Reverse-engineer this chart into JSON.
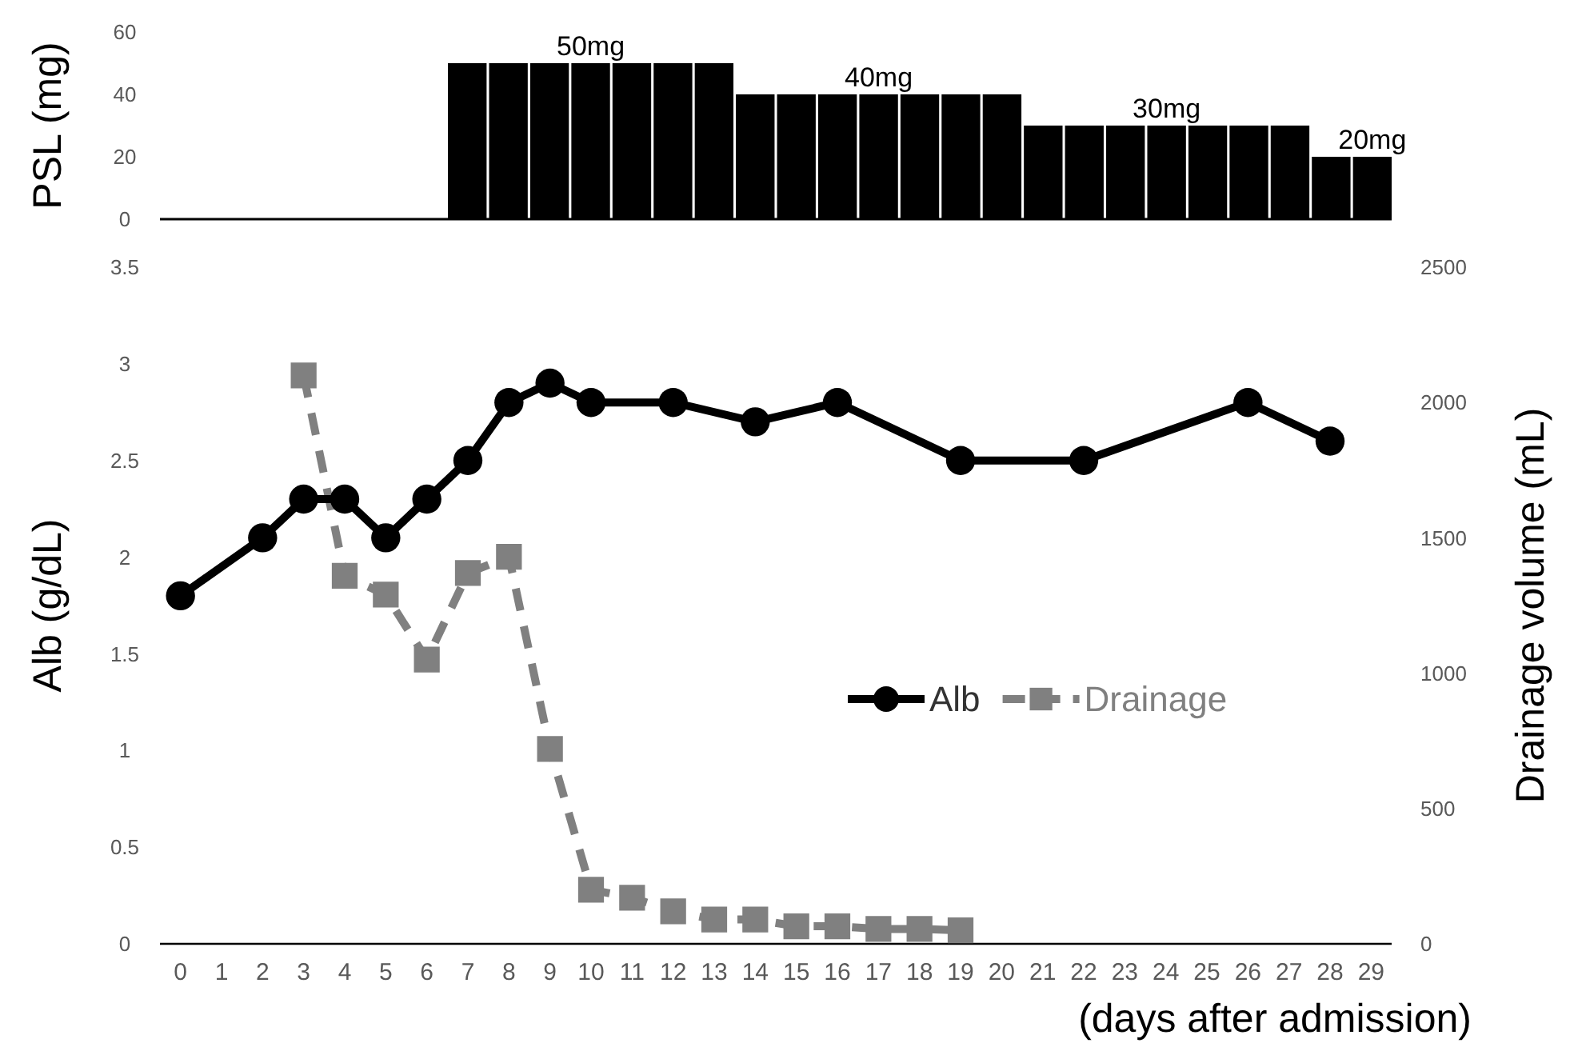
{
  "chart_data": [
    {
      "type": "bar",
      "ylabel": "PSL (mg)",
      "categories": [
        null,
        null,
        null,
        null,
        null,
        null,
        null,
        null,
        null,
        null,
        null,
        null,
        null,
        null,
        null,
        null,
        null,
        null,
        null,
        null,
        null,
        null,
        null,
        null,
        null,
        null,
        null,
        null,
        null,
        null
      ],
      "values": [
        0,
        0,
        0,
        0,
        0,
        0,
        0,
        50,
        50,
        50,
        50,
        50,
        50,
        50,
        40,
        40,
        40,
        40,
        40,
        40,
        40,
        30,
        30,
        30,
        30,
        30,
        30,
        30,
        20,
        20
      ],
      "color": "#000000",
      "value_labels": [
        null,
        null,
        null,
        null,
        null,
        null,
        null,
        null,
        null,
        null,
        "50mg",
        null,
        null,
        null,
        null,
        null,
        null,
        "40mg",
        null,
        null,
        null,
        null,
        null,
        null,
        "30mg",
        null,
        null,
        null,
        null,
        "20mg"
      ],
      "ylim": [
        0,
        60
      ],
      "yticks": [
        0,
        20,
        40,
        60
      ],
      "tick_labels": "y"
    },
    {
      "type": "line",
      "xlabel": "(days after admission)",
      "ylabel": "Alb (g/dL)",
      "y2label": "Drainage volume (mL)",
      "xlim": [
        -0.5,
        29.5
      ],
      "xticks": [
        0,
        1,
        2,
        3,
        4,
        5,
        6,
        7,
        8,
        9,
        10,
        11,
        12,
        13,
        14,
        15,
        16,
        17,
        18,
        19,
        20,
        21,
        22,
        23,
        24,
        25,
        26,
        27,
        28,
        29
      ],
      "ylim": [
        0,
        3.5
      ],
      "yticks": [
        0,
        0.5,
        1,
        1.5,
        2,
        2.5,
        3,
        3.5
      ],
      "y2lim": [
        0,
        2500
      ],
      "y2ticks": [
        0,
        500,
        1000,
        1500,
        2000,
        2500
      ],
      "legend": "right",
      "series": [
        {
          "name": "Alb",
          "color": "#000000",
          "marker": "circle",
          "line_style": "solid",
          "x": [
            0,
            2,
            3,
            4,
            5,
            6,
            7,
            8,
            9,
            10,
            12,
            14,
            16,
            19,
            22,
            26,
            28
          ],
          "values": [
            1.8,
            2.1,
            2.3,
            2.3,
            2.1,
            2.3,
            2.5,
            2.8,
            2.9,
            2.8,
            2.8,
            2.7,
            2.8,
            2.5,
            2.5,
            2.8,
            2.6
          ]
        },
        {
          "name": "Drainage",
          "color": "#808080",
          "marker": "square",
          "line_style": "dashed",
          "axis": "y2",
          "x": [
            3,
            4,
            5,
            6,
            7,
            8,
            9,
            10,
            11,
            12,
            13,
            14,
            15,
            16,
            17,
            18,
            19
          ],
          "values": [
            2100,
            1360,
            1290,
            1050,
            1370,
            1430,
            720,
            200,
            170,
            120,
            90,
            90,
            65,
            65,
            55,
            55,
            50
          ]
        }
      ]
    }
  ]
}
